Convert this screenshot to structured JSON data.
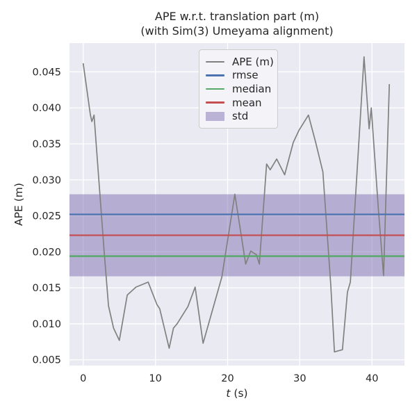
{
  "figure": {
    "title_line1": "APE w.r.t. translation part (m)",
    "title_line2": "(with Sim(3) Umeyama alignment)"
  },
  "axes": {
    "ylabel": "APE (m)",
    "xlabel_var": "t",
    "xlabel_unit": "(s)"
  },
  "legend": {
    "items": [
      {
        "label": "APE (m)",
        "type": "line",
        "color": "#808080"
      },
      {
        "label": "rmse",
        "type": "line",
        "color": "#4c72b0"
      },
      {
        "label": "median",
        "type": "line",
        "color": "#55a868"
      },
      {
        "label": "mean",
        "type": "line",
        "color": "#c44e52"
      },
      {
        "label": "std",
        "type": "patch",
        "color": "#8172b2",
        "fill_alpha": 0.5
      }
    ]
  },
  "chart_data": {
    "type": "line",
    "title": "APE w.r.t. translation part (m)\n(with Sim(3) Umeyama alignment)",
    "xlabel": "t (s)",
    "ylabel": "APE (m)",
    "xlim": [
      -1.9,
      44.5
    ],
    "ylim": [
      0.0042,
      0.049
    ],
    "xticks": [
      0,
      10,
      20,
      30,
      40
    ],
    "yticks": [
      0.005,
      0.01,
      0.015,
      0.02,
      0.025,
      0.03,
      0.035,
      0.04,
      0.045
    ],
    "grid": true,
    "legend_position": "upper center",
    "series": [
      {
        "name": "APE (m)",
        "color": "#808080",
        "points": [
          [
            0.0,
            0.0462
          ],
          [
            1.0,
            0.039
          ],
          [
            1.2,
            0.0381
          ],
          [
            1.5,
            0.039
          ],
          [
            2.9,
            0.02
          ],
          [
            3.5,
            0.0125
          ],
          [
            4.2,
            0.0094
          ],
          [
            5.0,
            0.0077
          ],
          [
            6.1,
            0.014
          ],
          [
            7.3,
            0.0151
          ],
          [
            9.0,
            0.0158
          ],
          [
            10.2,
            0.0127
          ],
          [
            10.6,
            0.0121
          ],
          [
            11.9,
            0.0066
          ],
          [
            12.5,
            0.0094
          ],
          [
            13.0,
            0.01
          ],
          [
            14.5,
            0.0124
          ],
          [
            15.5,
            0.0151
          ],
          [
            16.6,
            0.0073
          ],
          [
            19.2,
            0.0165
          ],
          [
            21.0,
            0.028
          ],
          [
            22.5,
            0.0183
          ],
          [
            23.2,
            0.0201
          ],
          [
            24.0,
            0.0196
          ],
          [
            24.4,
            0.0183
          ],
          [
            25.4,
            0.0322
          ],
          [
            25.9,
            0.0314
          ],
          [
            26.8,
            0.0329
          ],
          [
            27.9,
            0.0307
          ],
          [
            29.1,
            0.0352
          ],
          [
            29.9,
            0.0369
          ],
          [
            31.2,
            0.039
          ],
          [
            32.2,
            0.0352
          ],
          [
            33.2,
            0.0311
          ],
          [
            34.3,
            0.0153
          ],
          [
            34.8,
            0.0061
          ],
          [
            35.9,
            0.0064
          ],
          [
            36.6,
            0.0144
          ],
          [
            37.0,
            0.0158
          ],
          [
            38.9,
            0.0471
          ],
          [
            39.6,
            0.0371
          ],
          [
            39.9,
            0.04
          ],
          [
            40.9,
            0.0257
          ],
          [
            41.6,
            0.0167
          ],
          [
            42.4,
            0.0433
          ]
        ]
      }
    ],
    "stats": {
      "rmse": 0.0252,
      "median": 0.0194,
      "mean": 0.0223,
      "std": 0.0057
    },
    "std_band": [
      0.0166,
      0.028
    ],
    "colors": {
      "figure_bg": "#ffffff",
      "axes_bg": "#eaeaf2",
      "grid": "#ffffff",
      "text": "#262626",
      "ape": "#808080",
      "rmse": "#4c72b0",
      "median": "#55a868",
      "mean": "#c44e52",
      "std": "#8172b2"
    }
  }
}
